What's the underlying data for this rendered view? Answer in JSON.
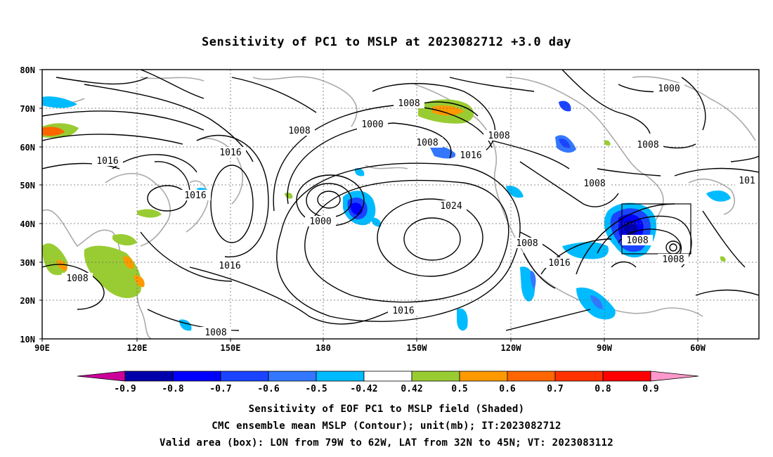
{
  "title": "Sensitivity of PC1 to MSLP at 2023082712 +3.0 day",
  "lat_labels": [
    "80N",
    "70N",
    "60N",
    "50N",
    "40N",
    "30N",
    "20N",
    "10N"
  ],
  "lon_labels": [
    "90E",
    "120E",
    "150E",
    "180",
    "150W",
    "120W",
    "90W",
    "60W"
  ],
  "contour_labels": [
    "1008",
    "1000",
    "1008",
    "1008",
    "1016",
    "1016",
    "1008",
    "1000",
    "1008",
    "1016",
    "1000",
    "1008",
    "1016",
    "1024",
    "1016",
    "1016",
    "1008",
    "1008",
    "1016",
    "1008",
    "1016",
    "1008",
    "1008",
    "1016",
    "101"
  ],
  "colorbar": {
    "ticks": [
      "-0.9",
      "-0.8",
      "-0.7",
      "-0.6",
      "-0.5",
      "-0.42",
      "0.42",
      "0.5",
      "0.6",
      "0.7",
      "0.8",
      "0.9"
    ],
    "colors": [
      "#cc0099",
      "#0000aa",
      "#0000ff",
      "#1a44ff",
      "#3377ff",
      "#00bbff",
      "#ffffff",
      "#99cc33",
      "#ff9900",
      "#ff6600",
      "#ff3300",
      "#ff0000",
      "#ff99cc"
    ]
  },
  "footer": {
    "line1": "Sensitivity of EOF PC1 to MSLP field (Shaded)",
    "line2": "CMC ensemble mean MSLP (Contour); unit(mb); IT:2023082712",
    "line3": "Valid area (box): LON from 79W to 62W, LAT from 32N to 45N; VT: 2023083112"
  }
}
